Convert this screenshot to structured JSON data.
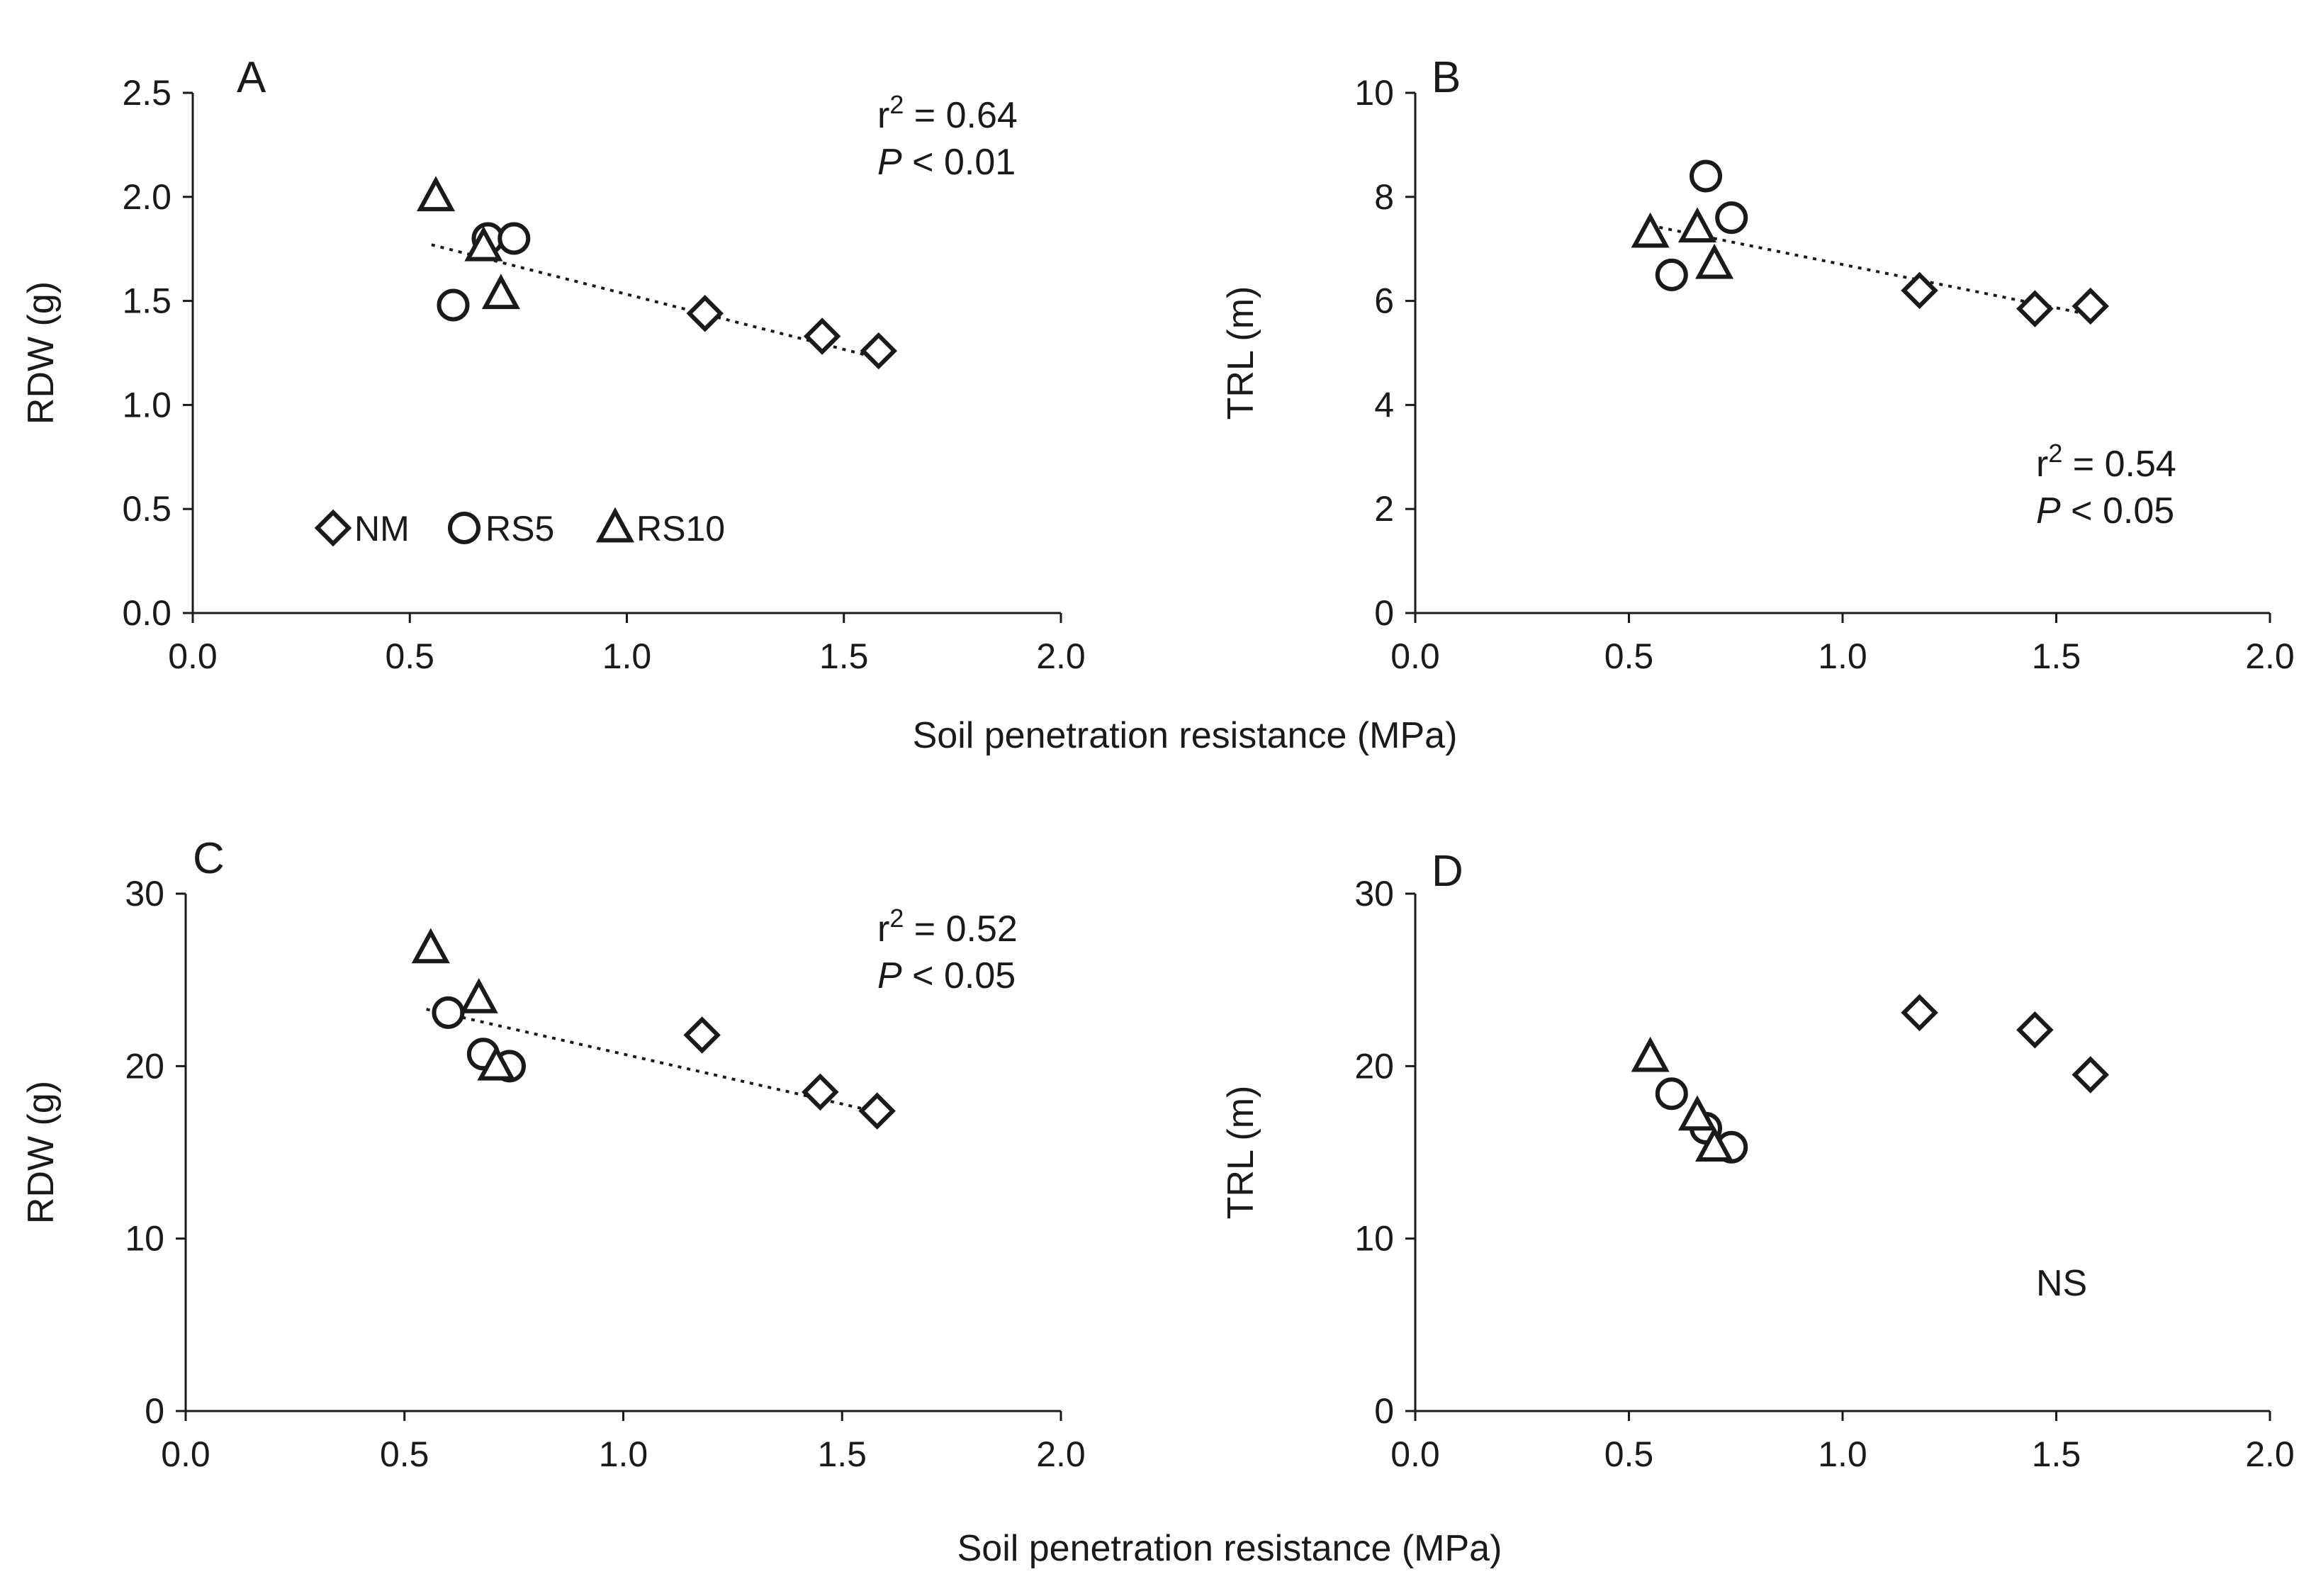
{
  "figure": {
    "xlabel_top": "Soil penetration resistance (MPa)",
    "xlabel_bottom": "Soil penetration resistance (MPa)"
  },
  "legend": {
    "entries": [
      {
        "label": "NM",
        "marker": "diamond"
      },
      {
        "label": "RS5",
        "marker": "circle"
      },
      {
        "label": "RS10",
        "marker": "triangle"
      }
    ]
  },
  "colors": {
    "ink": "#1a1a1a",
    "marker_fill": "#ffffff",
    "background": "#ffffff"
  },
  "chart_data": [
    {
      "id": "A",
      "type": "scatter",
      "panel_label": "A",
      "ylabel": "RDW (g)",
      "xlim": [
        0,
        2.0
      ],
      "ylim": [
        0,
        2.5
      ],
      "xticks": [
        "0.0",
        "0.5",
        "1.0",
        "1.5",
        "2.0"
      ],
      "yticks": [
        "0.0",
        "0.5",
        "1.0",
        "1.5",
        "2.0",
        "2.5"
      ],
      "stats": {
        "r2_prefix": "r",
        "r2_sup": "2",
        "r2_value": " = 0.64",
        "p_symbol": "P",
        "p_value": " < 0.01"
      },
      "trendline": {
        "x": [
          0.55,
          1.57
        ],
        "y": [
          1.77,
          1.23
        ]
      },
      "series": [
        {
          "name": "NM",
          "marker": "diamond",
          "x": [
            1.18,
            1.45,
            1.58
          ],
          "y": [
            1.44,
            1.33,
            1.26
          ]
        },
        {
          "name": "RS5",
          "marker": "circle",
          "x": [
            0.6,
            0.68,
            0.74
          ],
          "y": [
            1.48,
            1.8,
            1.8
          ]
        },
        {
          "name": "RS10",
          "marker": "triangle",
          "x": [
            0.56,
            0.67,
            0.71
          ],
          "y": [
            2.0,
            1.76,
            1.53
          ]
        }
      ]
    },
    {
      "id": "B",
      "type": "scatter",
      "panel_label": "B",
      "ylabel": "TRL (m)",
      "xlim": [
        0,
        2.0
      ],
      "ylim": [
        0,
        10
      ],
      "xticks": [
        "0.0",
        "0.5",
        "1.0",
        "1.5",
        "2.0"
      ],
      "yticks": [
        "0",
        "2",
        "4",
        "6",
        "8",
        "10"
      ],
      "stats": {
        "r2_prefix": "r",
        "r2_sup": "2",
        "r2_value": " = 0.54",
        "p_symbol": "P",
        "p_value": " < 0.05"
      },
      "trendline": {
        "x": [
          0.55,
          1.57
        ],
        "y": [
          7.45,
          5.75
        ]
      },
      "series": [
        {
          "name": "NM",
          "marker": "diamond",
          "x": [
            1.18,
            1.45,
            1.58
          ],
          "y": [
            6.2,
            5.85,
            5.9
          ]
        },
        {
          "name": "RS5",
          "marker": "circle",
          "x": [
            0.6,
            0.68,
            0.74
          ],
          "y": [
            6.5,
            8.4,
            7.6
          ]
        },
        {
          "name": "RS10",
          "marker": "triangle",
          "x": [
            0.55,
            0.66,
            0.7
          ],
          "y": [
            7.3,
            7.4,
            6.7
          ]
        }
      ]
    },
    {
      "id": "C",
      "type": "scatter",
      "panel_label": "C",
      "ylabel": "RDW (g)",
      "xlim": [
        0,
        2.0
      ],
      "ylim": [
        0,
        30
      ],
      "xticks": [
        "0.0",
        "0.5",
        "1.0",
        "1.5",
        "2.0"
      ],
      "yticks": [
        "0",
        "10",
        "20",
        "30"
      ],
      "stats": {
        "r2_prefix": "r",
        "r2_sup": "2",
        "r2_value": " = 0.52",
        "p_symbol": "P",
        "p_value": " < 0.05"
      },
      "trendline": {
        "x": [
          0.55,
          1.57
        ],
        "y": [
          23.3,
          17.4
        ]
      },
      "series": [
        {
          "name": "NM",
          "marker": "diamond",
          "x": [
            1.18,
            1.45,
            1.58
          ],
          "y": [
            21.8,
            18.5,
            17.4
          ]
        },
        {
          "name": "RS5",
          "marker": "circle",
          "x": [
            0.6,
            0.68,
            0.74
          ],
          "y": [
            23.1,
            20.7,
            20.0
          ]
        },
        {
          "name": "RS10",
          "marker": "triangle",
          "x": [
            0.56,
            0.67,
            0.71
          ],
          "y": [
            26.8,
            23.9,
            20.0
          ]
        }
      ]
    },
    {
      "id": "D",
      "type": "scatter",
      "panel_label": "D",
      "ylabel": "TRL (m)",
      "xlim": [
        0,
        2.0
      ],
      "ylim": [
        0,
        30
      ],
      "xticks": [
        "0.0",
        "0.5",
        "1.0",
        "1.5",
        "2.0"
      ],
      "yticks": [
        "0",
        "10",
        "20",
        "30"
      ],
      "stats": {
        "ns_text": "NS"
      },
      "trendline": null,
      "series": [
        {
          "name": "NM",
          "marker": "diamond",
          "x": [
            1.18,
            1.45,
            1.58
          ],
          "y": [
            23.1,
            22.1,
            19.5
          ]
        },
        {
          "name": "RS5",
          "marker": "circle",
          "x": [
            0.6,
            0.68,
            0.74
          ],
          "y": [
            18.4,
            16.4,
            15.3
          ]
        },
        {
          "name": "RS10",
          "marker": "triangle",
          "x": [
            0.55,
            0.66,
            0.7
          ],
          "y": [
            20.5,
            17.1,
            15.3
          ]
        }
      ]
    }
  ]
}
